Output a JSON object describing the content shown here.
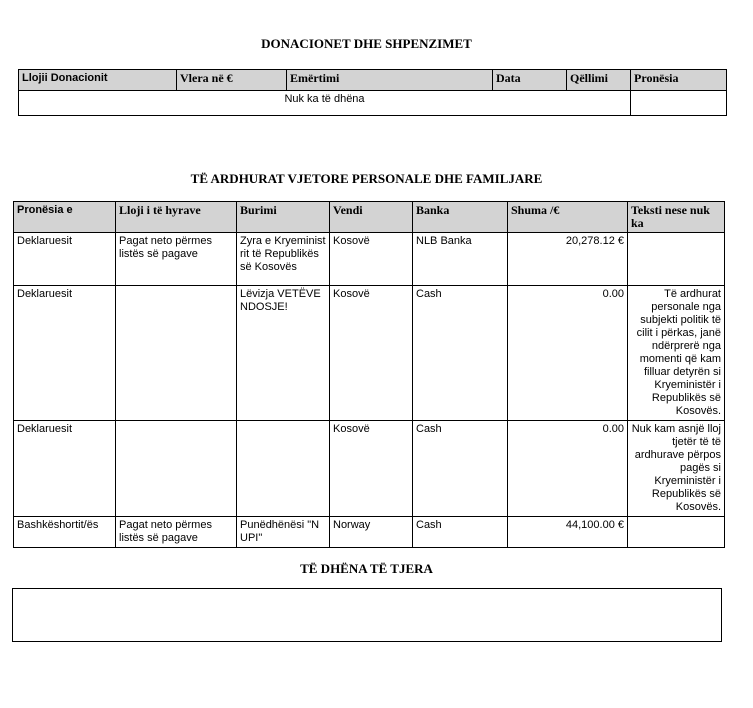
{
  "donations": {
    "title": "DONACIONET DHE SHPENZIMET",
    "headers": [
      "Llojii Donacionit",
      "Vlera në €",
      "Emërtimi",
      "Data",
      "Qëllimi",
      "Pronësia"
    ],
    "empty": "Nuk ka të dhëna"
  },
  "income": {
    "title": "TË ARDHURAT VJETORE PERSONALE DHE FAMILJARE",
    "headers": [
      "Pronësia e",
      "Lloji i të hyrave",
      "Burimi",
      "Vendi",
      "Banka",
      "Shuma /€",
      "Teksti nese nuk ka"
    ],
    "rows": [
      [
        "Deklaruesit",
        "Pagat neto përmes listës së pagave",
        "Zyra e Kryeministrit të Republikës së Kosovës",
        "Kosovë",
        "NLB Banka",
        "20,278.12 €",
        ""
      ],
      [
        "Deklaruesit",
        "",
        "Lëvizja VETËVENDOSJE!",
        "Kosovë",
        "Cash",
        "0.00",
        "Të ardhurat personale nga subjekti politik të cilit i përkas, janë ndërprerë nga momenti që kam filluar detyrën si Kryeministër i Republikës së Kosovës."
      ],
      [
        "Deklaruesit",
        "",
        "",
        "Kosovë",
        "Cash",
        "0.00",
        "Nuk kam asnjë lloj tjetër të të ardhurave përpos pagës si Kryeministër i Republikës së Kosovës."
      ],
      [
        "Bashkëshortit/ës",
        "Pagat neto përmes listës së pagave",
        "Punëdhënësi \"NUPI\"",
        "Norway",
        "Cash",
        "44,100.00 €",
        ""
      ]
    ]
  },
  "other": {
    "title": "TË DHËNA TË TJERA"
  }
}
